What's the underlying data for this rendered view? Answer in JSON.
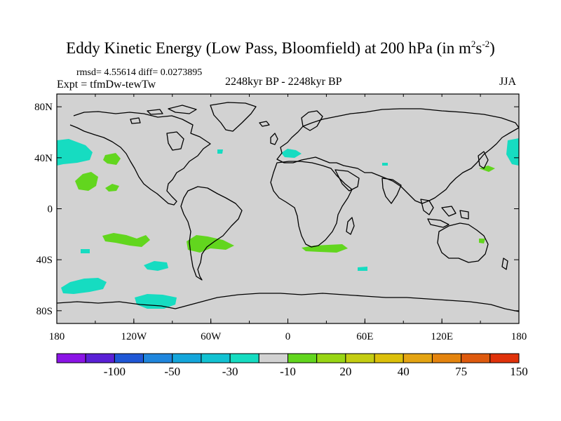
{
  "title": {
    "main": "Eddy Kinetic Energy (Low Pass, Bloomfield) at 200 hPa (in m",
    "exp1": "2",
    "mid": "s",
    "exp2": "-2",
    "tail": ")"
  },
  "stats": "rmsd= 4.55614 diff= 0.0273895",
  "experiment": "Expt = tfmDw-tewTw",
  "period": "2248kyr BP - 2248kyr BP",
  "season": "JJA",
  "axes": {
    "lon_ticks": [
      "180",
      "120W",
      "60W",
      "0",
      "60E",
      "120E",
      "180"
    ],
    "lat_ticks": [
      "80N",
      "40N",
      "0",
      "40S",
      "80S"
    ]
  },
  "colorbar": {
    "colors": [
      "#8b14e6",
      "#5a20d6",
      "#1f57d6",
      "#1f86dd",
      "#14a6db",
      "#12c2d2",
      "#16dcc1",
      "#d2d2d2",
      "#62d61e",
      "#98d614",
      "#c4cd12",
      "#dcc00a",
      "#e4a412",
      "#e4840e",
      "#de5a0e",
      "#e0320a"
    ],
    "labels": [
      "-100",
      "-50",
      "-30",
      "-10",
      "20",
      "40",
      "75",
      "150"
    ]
  },
  "map": {
    "background": "#d2d2d2",
    "anomaly_regions": [
      {
        "name": "north-pacific-west",
        "color": "#16dcc1"
      },
      {
        "name": "north-pacific-east",
        "color": "#62d61e"
      },
      {
        "name": "subtropical-pacific",
        "color": "#62d61e"
      },
      {
        "name": "south-pacific",
        "color": "#16dcc1"
      },
      {
        "name": "south-atlantic",
        "color": "#62d61e"
      },
      {
        "name": "south-africa",
        "color": "#62d61e"
      },
      {
        "name": "mediterranean",
        "color": "#16dcc1"
      },
      {
        "name": "northeast-pacific",
        "color": "#16dcc1"
      }
    ]
  }
}
